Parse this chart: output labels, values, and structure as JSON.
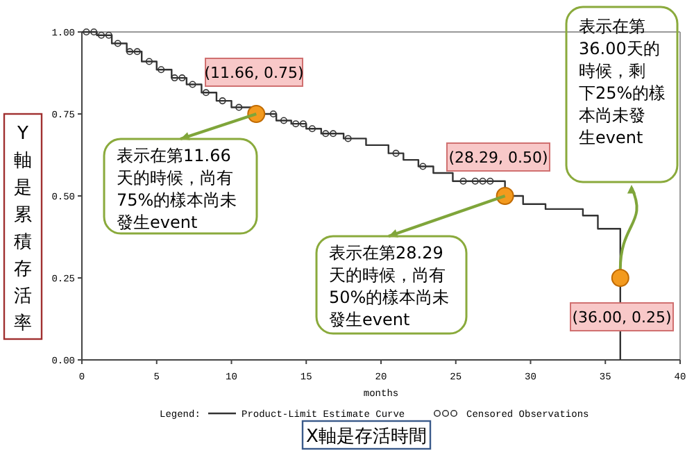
{
  "chart_data": {
    "type": "step",
    "xlabel": "months",
    "ylabel": "Y軸是累積存活率",
    "legend_title": "Legend:",
    "legend": "bottom",
    "grid": false,
    "xlim": [
      0,
      40
    ],
    "xticks": [
      0,
      5,
      10,
      15,
      20,
      25,
      30,
      35,
      40
    ],
    "ylim": [
      0,
      1
    ],
    "yticks": [
      {
        "value": 0,
        "label": "0.00"
      },
      {
        "value": 0.25,
        "label": "0.25"
      },
      {
        "value": 0.5,
        "label": "0.50"
      },
      {
        "value": 0.75,
        "label": "0.75"
      },
      {
        "value": 1,
        "label": "1.00"
      }
    ],
    "series": [
      {
        "name": "Product-Limit Estimate Curve",
        "color": "#333333",
        "line_style": "solid",
        "x": [
          0,
          1,
          2,
          3,
          4,
          5,
          6,
          7,
          8,
          9,
          10,
          11.66,
          13,
          14,
          15,
          16,
          17.5,
          19,
          20.5,
          21.5,
          22.5,
          23.5,
          24.8,
          28.29,
          29.5,
          31,
          33.5,
          34.5,
          36
        ],
        "values": [
          1,
          0.99,
          0.965,
          0.94,
          0.91,
          0.885,
          0.86,
          0.84,
          0.815,
          0.79,
          0.77,
          0.75,
          0.73,
          0.72,
          0.705,
          0.69,
          0.675,
          0.655,
          0.63,
          0.61,
          0.59,
          0.57,
          0.545,
          0.5,
          0.475,
          0.46,
          0.44,
          0.4,
          0
        ]
      },
      {
        "name": "Censored Observations",
        "type": "scatter",
        "marker": "circle",
        "color": "#333333",
        "x": [
          0.3,
          0.8,
          1.3,
          1.8,
          2.4,
          3.2,
          3.7,
          4.5,
          5.3,
          6.2,
          6.7,
          7.4,
          8.3,
          9.4,
          10.5,
          12.2,
          12.8,
          13.5,
          14.3,
          14.8,
          15.4,
          16.3,
          16.8,
          17.8,
          21,
          22.8,
          25.5,
          26.3,
          26.8,
          27.3
        ],
        "values": [
          1,
          1,
          0.99,
          0.99,
          0.965,
          0.94,
          0.94,
          0.91,
          0.885,
          0.86,
          0.86,
          0.84,
          0.815,
          0.79,
          0.77,
          null,
          0.75,
          0.73,
          0.72,
          0.72,
          0.705,
          0.69,
          0.69,
          0.675,
          0.63,
          0.59,
          0.545,
          0.545,
          0.545,
          0.545
        ]
      }
    ],
    "annotations": [
      {
        "text": "(11.66, 0.75)",
        "x": 11.66,
        "y": 0.75
      },
      {
        "text": "表示在第11.66天的時候，尚有75%的樣本尚未發生event",
        "x": 11.66,
        "y": 0.75
      },
      {
        "text": "(28.29, 0.50)",
        "x": 28.29,
        "y": 0.5
      },
      {
        "text": "表示在第28.29天的時候，尚有50%的樣本尚未發生event",
        "x": 28.29,
        "y": 0.5
      },
      "表示在第36.00天的時候，剩下25%的樣本尚未發生event",
      {
        "text": "(36.00, 0.25)",
        "x": 36,
        "y": 0.25
      },
      "X軸是存活時間"
    ]
  }
}
